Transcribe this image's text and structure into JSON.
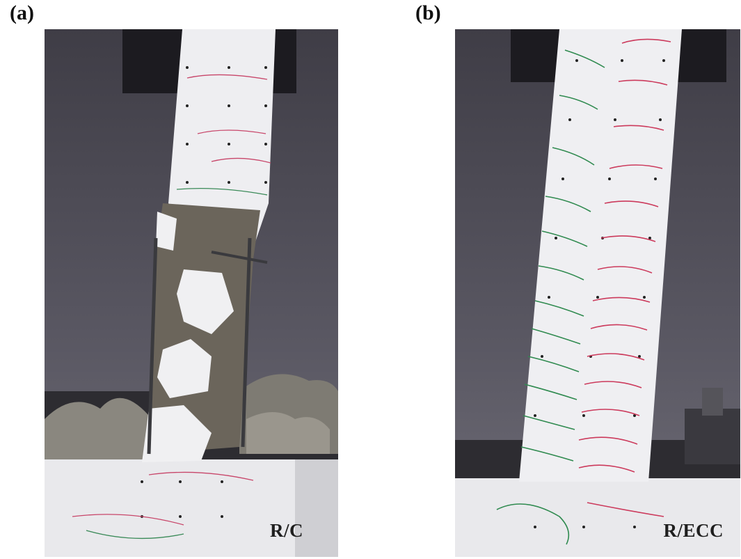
{
  "panels": [
    {
      "label": "(a)",
      "caption": "R/C"
    },
    {
      "label": "(b)",
      "caption": "R/ECC"
    }
  ]
}
